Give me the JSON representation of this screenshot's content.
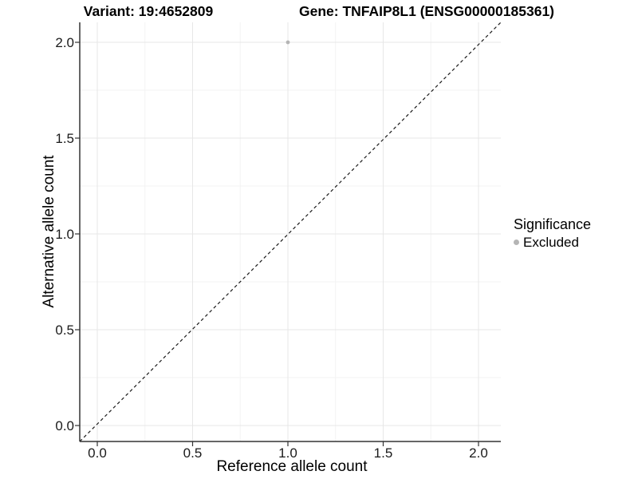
{
  "chart_data": {
    "type": "scatter",
    "titles": {
      "left": "Variant: 19:4652809",
      "right": "Gene: TNFAIP8L1 (ENSG00000185361)"
    },
    "xlabel": "Reference allele count",
    "ylabel": "Alternative allele count",
    "xlim": [
      -0.1,
      2.1
    ],
    "ylim": [
      -0.1,
      2.1
    ],
    "x_ticks": [
      0.0,
      0.5,
      1.0,
      1.5,
      2.0
    ],
    "x_tick_labels": [
      "0.0",
      "0.5",
      "1.0",
      "1.5",
      "2.0"
    ],
    "y_ticks": [
      0.0,
      0.5,
      1.0,
      1.5,
      2.0
    ],
    "y_tick_labels": [
      "0.0",
      "0.5",
      "1.0",
      "1.5",
      "2.0"
    ],
    "minor_gridlines": [
      0.25,
      0.75,
      1.25,
      1.75
    ],
    "grid": "on",
    "identity_line": {
      "style": "dashed",
      "from": [
        -0.1,
        -0.1
      ],
      "to": [
        2.1,
        2.1
      ]
    },
    "series": [
      {
        "name": "Excluded",
        "color": "#b5b5b5",
        "points": [
          {
            "x": 1.0,
            "y": 2.0
          }
        ]
      }
    ],
    "legend": {
      "title": "Significance",
      "position": "right",
      "entries": [
        {
          "label": "Excluded",
          "color": "#b5b5b5"
        }
      ]
    },
    "colors": {
      "background": "#ffffff",
      "grid_major": "#e7e7e7",
      "grid_minor": "#f3f3f3",
      "axis_line": "#333333",
      "tick_mark": "#333333",
      "dashed_line": "#1a1a1a",
      "text": "#000000"
    }
  }
}
